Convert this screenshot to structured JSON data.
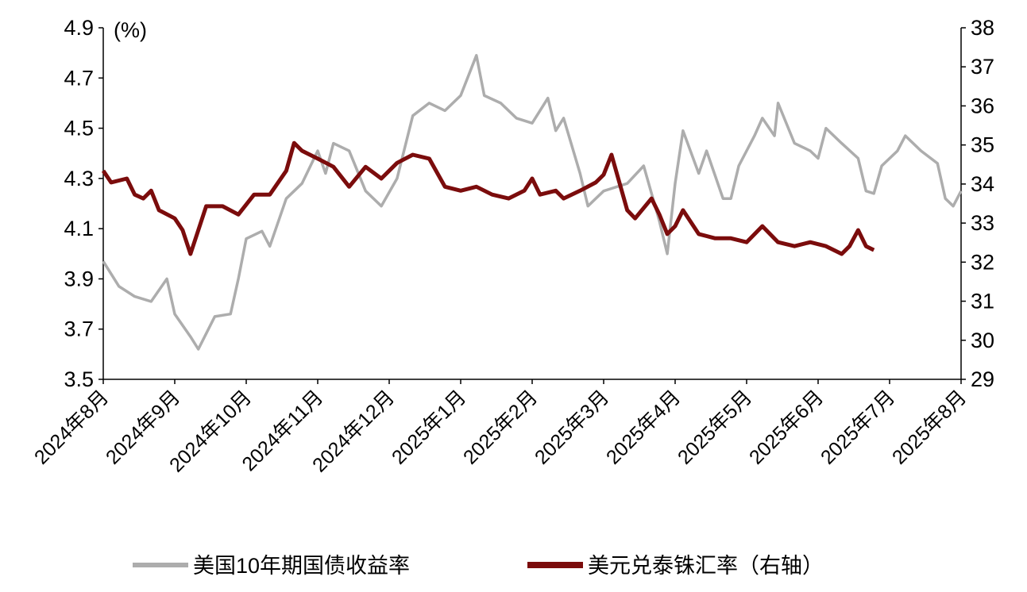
{
  "chart_data": {
    "type": "line",
    "unit_label": "(%)",
    "x_unit": "months since 2024-08",
    "x_categories": [
      "2024年8月",
      "2024年9月",
      "2024年10月",
      "2024年11月",
      "2024年12月",
      "2025年1月",
      "2025年2月",
      "2025年3月",
      "2025年4月",
      "2025年5月",
      "2025年6月",
      "2025年7月",
      "2025年8月"
    ],
    "xlim": [
      0,
      12
    ],
    "left_axis": {
      "ylim": [
        3.5,
        4.9
      ],
      "ticks": [
        "3.5",
        "3.7",
        "3.9",
        "4.1",
        "4.3",
        "4.5",
        "4.7",
        "4.9"
      ]
    },
    "right_axis": {
      "ylim": [
        29,
        38
      ],
      "ticks": [
        "29",
        "30",
        "31",
        "32",
        "33",
        "34",
        "35",
        "36",
        "37",
        "38"
      ]
    },
    "grid": false,
    "legend_placement": "bottom",
    "series": [
      {
        "name": "美国10年期国债收益率",
        "axis": "left",
        "color": "#ADADAD",
        "points": [
          [
            0,
            3.97
          ],
          [
            0.22,
            3.87
          ],
          [
            0.44,
            3.83
          ],
          [
            0.67,
            3.81
          ],
          [
            0.89,
            3.9
          ],
          [
            1.0,
            3.76
          ],
          [
            1.22,
            3.67
          ],
          [
            1.33,
            3.62
          ],
          [
            1.56,
            3.75
          ],
          [
            1.78,
            3.76
          ],
          [
            1.89,
            3.9
          ],
          [
            2.0,
            4.06
          ],
          [
            2.22,
            4.09
          ],
          [
            2.33,
            4.03
          ],
          [
            2.56,
            4.22
          ],
          [
            2.78,
            4.28
          ],
          [
            3.0,
            4.41
          ],
          [
            3.11,
            4.32
          ],
          [
            3.22,
            4.44
          ],
          [
            3.44,
            4.41
          ],
          [
            3.67,
            4.25
          ],
          [
            3.89,
            4.19
          ],
          [
            4.11,
            4.3
          ],
          [
            4.33,
            4.55
          ],
          [
            4.56,
            4.6
          ],
          [
            4.78,
            4.57
          ],
          [
            5.0,
            4.63
          ],
          [
            5.22,
            4.79
          ],
          [
            5.33,
            4.63
          ],
          [
            5.56,
            4.6
          ],
          [
            5.78,
            4.54
          ],
          [
            6.0,
            4.52
          ],
          [
            6.22,
            4.62
          ],
          [
            6.33,
            4.49
          ],
          [
            6.44,
            4.54
          ],
          [
            6.67,
            4.32
          ],
          [
            6.78,
            4.19
          ],
          [
            7.0,
            4.25
          ],
          [
            7.33,
            4.28
          ],
          [
            7.56,
            4.35
          ],
          [
            7.78,
            4.13
          ],
          [
            7.89,
            4.0
          ],
          [
            8.0,
            4.28
          ],
          [
            8.11,
            4.49
          ],
          [
            8.33,
            4.32
          ],
          [
            8.44,
            4.41
          ],
          [
            8.67,
            4.22
          ],
          [
            8.78,
            4.22
          ],
          [
            8.89,
            4.35
          ],
          [
            9.11,
            4.47
          ],
          [
            9.22,
            4.54
          ],
          [
            9.39,
            4.47
          ],
          [
            9.44,
            4.6
          ],
          [
            9.67,
            4.44
          ],
          [
            9.89,
            4.41
          ],
          [
            10.0,
            4.38
          ],
          [
            10.11,
            4.5
          ],
          [
            10.33,
            4.44
          ],
          [
            10.56,
            4.38
          ],
          [
            10.67,
            4.25
          ],
          [
            10.78,
            4.24
          ],
          [
            10.89,
            4.35
          ],
          [
            11.11,
            4.41
          ],
          [
            11.22,
            4.47
          ],
          [
            11.44,
            4.41
          ],
          [
            11.67,
            4.36
          ],
          [
            11.78,
            4.22
          ],
          [
            11.89,
            4.19
          ],
          [
            12.0,
            4.25
          ]
        ]
      },
      {
        "name": "美元兑泰铢汇率（右轴）",
        "axis": "right",
        "color": "#7B0C0C",
        "points": [
          [
            0,
            34.34
          ],
          [
            0.11,
            34.04
          ],
          [
            0.33,
            34.14
          ],
          [
            0.44,
            33.73
          ],
          [
            0.56,
            33.63
          ],
          [
            0.67,
            33.83
          ],
          [
            0.78,
            33.33
          ],
          [
            1.0,
            33.12
          ],
          [
            1.11,
            32.82
          ],
          [
            1.22,
            32.21
          ],
          [
            1.33,
            32.82
          ],
          [
            1.44,
            33.43
          ],
          [
            1.67,
            33.43
          ],
          [
            1.89,
            33.22
          ],
          [
            2.11,
            33.73
          ],
          [
            2.33,
            33.73
          ],
          [
            2.56,
            34.34
          ],
          [
            2.67,
            35.05
          ],
          [
            2.78,
            34.85
          ],
          [
            3.0,
            34.65
          ],
          [
            3.22,
            34.44
          ],
          [
            3.44,
            33.93
          ],
          [
            3.67,
            34.44
          ],
          [
            3.89,
            34.14
          ],
          [
            4.11,
            34.54
          ],
          [
            4.33,
            34.75
          ],
          [
            4.56,
            34.65
          ],
          [
            4.78,
            33.93
          ],
          [
            5.0,
            33.83
          ],
          [
            5.22,
            33.93
          ],
          [
            5.44,
            33.73
          ],
          [
            5.67,
            33.63
          ],
          [
            5.89,
            33.83
          ],
          [
            6.0,
            34.14
          ],
          [
            6.11,
            33.73
          ],
          [
            6.33,
            33.83
          ],
          [
            6.44,
            33.63
          ],
          [
            6.67,
            33.83
          ],
          [
            6.89,
            34.04
          ],
          [
            7.0,
            34.24
          ],
          [
            7.11,
            34.75
          ],
          [
            7.22,
            34.04
          ],
          [
            7.33,
            33.33
          ],
          [
            7.44,
            33.12
          ],
          [
            7.67,
            33.63
          ],
          [
            7.78,
            33.22
          ],
          [
            7.89,
            32.72
          ],
          [
            8.0,
            32.92
          ],
          [
            8.11,
            33.33
          ],
          [
            8.33,
            32.72
          ],
          [
            8.56,
            32.61
          ],
          [
            8.78,
            32.61
          ],
          [
            9.0,
            32.51
          ],
          [
            9.22,
            32.92
          ],
          [
            9.44,
            32.51
          ],
          [
            9.67,
            32.41
          ],
          [
            9.89,
            32.51
          ],
          [
            10.11,
            32.41
          ],
          [
            10.33,
            32.21
          ],
          [
            10.44,
            32.41
          ],
          [
            10.56,
            32.82
          ],
          [
            10.67,
            32.41
          ],
          [
            10.78,
            32.31
          ]
        ]
      }
    ]
  }
}
